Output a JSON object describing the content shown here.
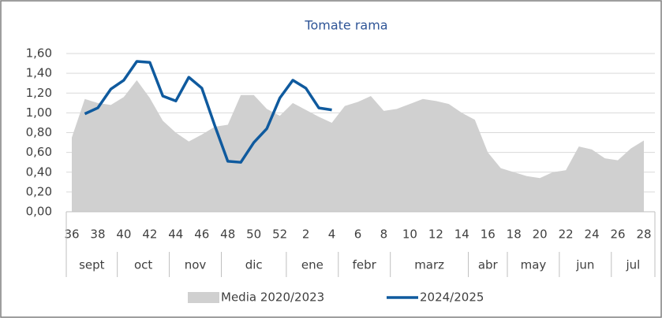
{
  "chart_data": {
    "type": "area_line",
    "title": "Tomate rama",
    "categories": [
      "36",
      null,
      "38",
      null,
      "40",
      null,
      "42",
      null,
      "44",
      null,
      "46",
      null,
      "48",
      null,
      "50",
      null,
      "52",
      null,
      "2",
      null,
      "4",
      null,
      "6",
      null,
      "8",
      null,
      "10",
      null,
      "12",
      null,
      "14",
      null,
      "16",
      null,
      "18",
      null,
      "20",
      null,
      "22",
      null,
      "24",
      null,
      "26",
      null,
      "28"
    ],
    "month_groups": [
      {
        "label": "sept",
        "span": 4
      },
      {
        "label": "oct",
        "span": 4
      },
      {
        "label": "nov",
        "span": 4
      },
      {
        "label": "dic",
        "span": 5
      },
      {
        "label": "ene",
        "span": 4
      },
      {
        "label": "febr",
        "span": 4
      },
      {
        "label": "marz",
        "span": 6
      },
      {
        "label": "abr",
        "span": 3
      },
      {
        "label": "may",
        "span": 4
      },
      {
        "label": "jun",
        "span": 4
      },
      {
        "label": "jul",
        "span": 3
      }
    ],
    "series": [
      {
        "name": "Media 2020/2023",
        "color": "#d0d0d0",
        "kind": "area",
        "values": [
          0.75,
          1.14,
          1.1,
          1.08,
          1.16,
          1.33,
          1.15,
          0.92,
          0.8,
          0.71,
          0.78,
          0.86,
          0.88,
          1.18,
          1.18,
          1.04,
          0.97,
          1.1,
          1.03,
          0.96,
          0.9,
          1.07,
          1.11,
          1.17,
          1.02,
          1.04,
          1.09,
          1.14,
          1.12,
          1.09,
          1.0,
          0.93,
          0.6,
          0.44,
          0.4,
          0.36,
          0.34,
          0.4,
          0.42,
          0.66,
          0.63,
          0.54,
          0.52,
          0.64,
          0.72
        ]
      },
      {
        "name": "2024/2025",
        "color": "#0f5a9e",
        "kind": "line",
        "values": [
          null,
          0.99,
          1.05,
          1.24,
          1.33,
          1.52,
          1.51,
          1.17,
          1.12,
          1.36,
          1.25,
          0.87,
          0.51,
          0.5,
          0.7,
          0.84,
          1.15,
          1.33,
          1.25,
          1.05,
          1.03,
          null,
          null,
          null,
          null,
          null,
          null,
          null,
          null,
          null,
          null,
          null,
          null,
          null,
          null,
          null,
          null,
          null,
          null,
          null,
          null,
          null,
          null,
          null,
          null
        ]
      }
    ],
    "ylim": [
      0,
      1.6
    ],
    "yticks": [
      {
        "value": 0,
        "label": "0,00"
      },
      {
        "value": 0.2,
        "label": "0,20"
      },
      {
        "value": 0.4,
        "label": "0,40"
      },
      {
        "value": 0.6,
        "label": "0,60"
      },
      {
        "value": 0.8,
        "label": "0,80"
      },
      {
        "value": 1,
        "label": "1,00"
      },
      {
        "value": 1.2,
        "label": "1,20"
      },
      {
        "value": 1.4,
        "label": "1,40"
      },
      {
        "value": 1.6,
        "label": "1,60"
      }
    ],
    "grid": true,
    "legend": "bottom"
  }
}
